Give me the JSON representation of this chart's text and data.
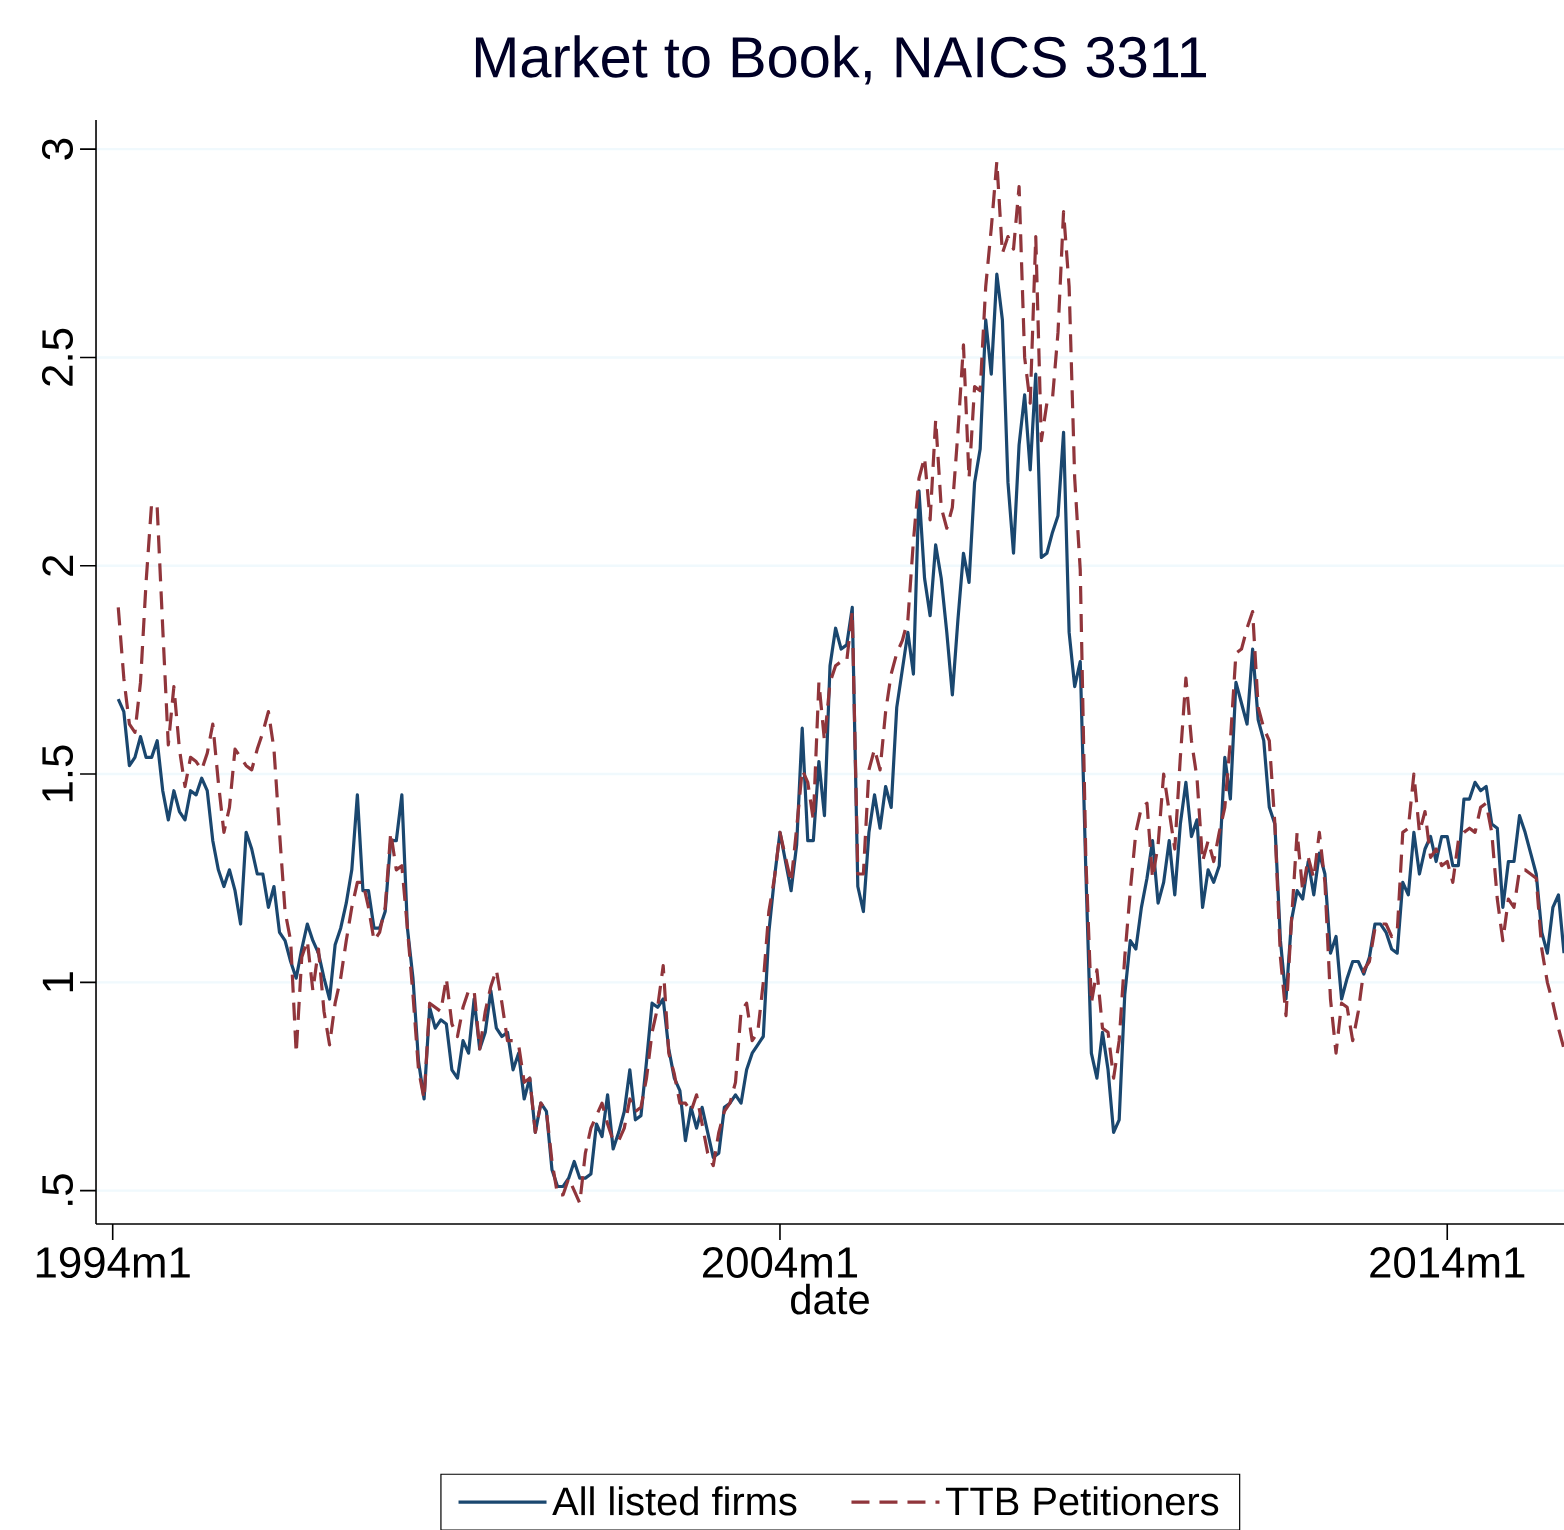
{
  "chart_data": {
    "type": "line",
    "title": "Market to Book, NAICS 3311",
    "xlabel": "date",
    "x": [
      "1994-02",
      "1994-03",
      "1994-04",
      "1994-05",
      "1994-06",
      "1994-07",
      "1994-08",
      "1994-09",
      "1994-10",
      "1994-11",
      "1994-12",
      "1995-01",
      "1995-02",
      "1995-03",
      "1995-04",
      "1995-05",
      "1995-06",
      "1995-07",
      "1995-08",
      "1995-09",
      "1995-10",
      "1995-11",
      "1995-12",
      "1996-01",
      "1996-02",
      "1996-03",
      "1996-04",
      "1996-05",
      "1996-06",
      "1996-07",
      "1996-08",
      "1996-09",
      "1996-10",
      "1996-11",
      "1996-12",
      "1997-01",
      "1997-02",
      "1997-03",
      "1997-04",
      "1997-05",
      "1997-06",
      "1997-07",
      "1997-08",
      "1997-09",
      "1997-10",
      "1997-11",
      "1997-12",
      "1998-01",
      "1998-02",
      "1998-03",
      "1998-04",
      "1998-05",
      "1998-06",
      "1998-07",
      "1998-08",
      "1998-09",
      "1998-10",
      "1998-11",
      "1998-12",
      "1999-01",
      "1999-02",
      "1999-03",
      "1999-04",
      "1999-05",
      "1999-06",
      "1999-07",
      "1999-08",
      "1999-09",
      "1999-10",
      "1999-11",
      "1999-12",
      "2000-01",
      "2000-02",
      "2000-03",
      "2000-04",
      "2000-05",
      "2000-06",
      "2000-07",
      "2000-08",
      "2000-09",
      "2000-10",
      "2000-11",
      "2000-12",
      "2001-01",
      "2001-02",
      "2001-03",
      "2001-04",
      "2001-05",
      "2001-06",
      "2001-07",
      "2001-08",
      "2001-09",
      "2001-10",
      "2001-11",
      "2001-12",
      "2002-01",
      "2002-02",
      "2002-03",
      "2002-04",
      "2002-05",
      "2002-06",
      "2002-07",
      "2002-08",
      "2002-09",
      "2002-10",
      "2002-11",
      "2002-12",
      "2003-01",
      "2003-02",
      "2003-03",
      "2003-04",
      "2003-05",
      "2003-06",
      "2003-07",
      "2003-08",
      "2003-09",
      "2003-10",
      "2003-11",
      "2003-12",
      "2004-01",
      "2004-02",
      "2004-03",
      "2004-04",
      "2004-05",
      "2004-06",
      "2004-07",
      "2004-08",
      "2004-09",
      "2004-10",
      "2004-11",
      "2004-12",
      "2005-01",
      "2005-02",
      "2005-03",
      "2005-04",
      "2005-05",
      "2005-06",
      "2005-07",
      "2005-08",
      "2005-09",
      "2005-10",
      "2005-11",
      "2005-12",
      "2006-01",
      "2006-02",
      "2006-03",
      "2006-04",
      "2006-05",
      "2006-06",
      "2006-07",
      "2006-08",
      "2006-09",
      "2006-10",
      "2006-11",
      "2006-12",
      "2007-01",
      "2007-02",
      "2007-03",
      "2007-04",
      "2007-05",
      "2007-06",
      "2007-07",
      "2007-08",
      "2007-09",
      "2007-10",
      "2007-11",
      "2007-12",
      "2008-01",
      "2008-02",
      "2008-03",
      "2008-04",
      "2008-05",
      "2008-06",
      "2008-07",
      "2008-08",
      "2008-09",
      "2008-10",
      "2008-11",
      "2008-12",
      "2009-01",
      "2009-02",
      "2009-03",
      "2009-04",
      "2009-05",
      "2009-06",
      "2009-07",
      "2009-08",
      "2009-09",
      "2009-10",
      "2009-11",
      "2009-12",
      "2010-01",
      "2010-02",
      "2010-03",
      "2010-04",
      "2010-05",
      "2010-06",
      "2010-07",
      "2010-08",
      "2010-09",
      "2010-10",
      "2010-11",
      "2010-12",
      "2011-01",
      "2011-02",
      "2011-03",
      "2011-04",
      "2011-05",
      "2011-06",
      "2011-07",
      "2011-08",
      "2011-09",
      "2011-10",
      "2011-11",
      "2011-12",
      "2012-01",
      "2012-02",
      "2012-03",
      "2012-04",
      "2012-05",
      "2012-06",
      "2012-07",
      "2012-08",
      "2012-09",
      "2012-10",
      "2012-11",
      "2012-12",
      "2013-01",
      "2013-02",
      "2013-03",
      "2013-04",
      "2013-05",
      "2013-06",
      "2013-07",
      "2013-08",
      "2013-09",
      "2013-10",
      "2013-11",
      "2013-12",
      "2014-01",
      "2014-02",
      "2014-03",
      "2014-04",
      "2014-05",
      "2014-06",
      "2014-07",
      "2014-08",
      "2014-09",
      "2014-10",
      "2014-11",
      "2014-12",
      "2015-01",
      "2015-02",
      "2015-03",
      "2015-04",
      "2015-05",
      "2015-06",
      "2015-07",
      "2015-08",
      "2015-09",
      "2015-10"
    ],
    "series": [
      {
        "name": "All listed firms",
        "color": "#1a476f",
        "line_style": "solid",
        "values": [
          1.68,
          1.65,
          1.52,
          1.54,
          1.59,
          1.54,
          1.54,
          1.58,
          1.46,
          1.39,
          1.46,
          1.41,
          1.39,
          1.46,
          1.45,
          1.49,
          1.46,
          1.34,
          1.27,
          1.23,
          1.27,
          1.22,
          1.14,
          1.36,
          1.32,
          1.26,
          1.26,
          1.18,
          1.23,
          1.12,
          1.1,
          1.05,
          1.01,
          1.08,
          1.14,
          1.1,
          1.07,
          1.01,
          0.96,
          1.09,
          1.13,
          1.19,
          1.27,
          1.45,
          1.22,
          1.22,
          1.13,
          1.13,
          1.17,
          1.34,
          1.34,
          1.45,
          1.13,
          1.01,
          0.81,
          0.72,
          0.94,
          0.89,
          0.91,
          0.9,
          0.79,
          0.77,
          0.86,
          0.83,
          0.96,
          0.84,
          0.88,
          0.98,
          0.89,
          0.87,
          0.88,
          0.79,
          0.83,
          0.72,
          0.77,
          0.64,
          0.71,
          0.69,
          0.55,
          0.51,
          0.51,
          0.53,
          0.57,
          0.53,
          0.53,
          0.54,
          0.66,
          0.63,
          0.73,
          0.6,
          0.64,
          0.69,
          0.79,
          0.67,
          0.68,
          0.81,
          0.95,
          0.94,
          0.96,
          0.84,
          0.77,
          0.74,
          0.62,
          0.7,
          0.65,
          0.7,
          0.64,
          0.58,
          0.59,
          0.7,
          0.71,
          0.73,
          0.71,
          0.79,
          0.83,
          0.85,
          0.87,
          1.12,
          1.25,
          1.36,
          1.29,
          1.22,
          1.33,
          1.61,
          1.34,
          1.34,
          1.53,
          1.4,
          1.76,
          1.85,
          1.8,
          1.81,
          1.9,
          1.23,
          1.17,
          1.36,
          1.45,
          1.37,
          1.47,
          1.42,
          1.66,
          1.75,
          1.84,
          1.74,
          2.18,
          1.97,
          1.88,
          2.05,
          1.97,
          1.84,
          1.69,
          1.87,
          2.03,
          1.96,
          2.2,
          2.28,
          2.59,
          2.46,
          2.7,
          2.59,
          2.2,
          2.03,
          2.29,
          2.41,
          2.23,
          2.46,
          2.02,
          2.03,
          2.08,
          2.12,
          2.32,
          1.84,
          1.71,
          1.77,
          1.27,
          0.83,
          0.77,
          0.88,
          0.79,
          0.64,
          0.67,
          0.97,
          1.1,
          1.08,
          1.18,
          1.25,
          1.34,
          1.19,
          1.24,
          1.34,
          1.21,
          1.38,
          1.48,
          1.35,
          1.39,
          1.18,
          1.27,
          1.24,
          1.28,
          1.54,
          1.44,
          1.72,
          1.67,
          1.62,
          1.8,
          1.63,
          1.58,
          1.42,
          1.38,
          1.1,
          0.96,
          1.15,
          1.22,
          1.2,
          1.29,
          1.21,
          1.31,
          1.26,
          1.07,
          1.11,
          0.96,
          1.01,
          1.05,
          1.05,
          1.02,
          1.06,
          1.14,
          1.14,
          1.12,
          1.08,
          1.07,
          1.24,
          1.21,
          1.36,
          1.26,
          1.32,
          1.35,
          1.29,
          1.35,
          1.35,
          1.28,
          1.28,
          1.44,
          1.44,
          1.48,
          1.46,
          1.47,
          1.38,
          1.37,
          1.18,
          1.29,
          1.29,
          1.4,
          1.36,
          1.31,
          1.26,
          1.12,
          1.07,
          1.18,
          1.21,
          1.07
        ]
      },
      {
        "name": "TTB Petitioners",
        "color": "#90353b",
        "line_style": "dashed",
        "values": [
          1.9,
          1.73,
          1.62,
          1.6,
          1.72,
          1.96,
          2.15,
          2.14,
          1.85,
          1.57,
          1.71,
          1.56,
          1.47,
          1.54,
          1.53,
          1.51,
          1.55,
          1.62,
          1.48,
          1.36,
          1.42,
          1.56,
          1.54,
          1.52,
          1.51,
          1.56,
          1.6,
          1.65,
          1.56,
          1.36,
          1.17,
          1.1,
          0.83,
          1.06,
          1.1,
          0.98,
          1.08,
          0.93,
          0.85,
          0.95,
          1.01,
          1.1,
          1.18,
          1.24,
          1.24,
          1.18,
          1.1,
          1.12,
          1.18,
          1.36,
          1.27,
          1.28,
          1.13,
          0.97,
          0.79,
          0.72,
          0.95,
          0.94,
          0.93,
          1.01,
          0.9,
          0.87,
          0.94,
          0.98,
          0.98,
          0.84,
          0.93,
          0.99,
          1.03,
          0.95,
          0.86,
          0.86,
          0.85,
          0.76,
          0.77,
          0.64,
          0.71,
          0.69,
          0.57,
          0.49,
          0.49,
          0.53,
          0.5,
          0.47,
          0.59,
          0.65,
          0.68,
          0.71,
          0.66,
          0.62,
          0.62,
          0.65,
          0.72,
          0.69,
          0.7,
          0.77,
          0.88,
          0.94,
          1.04,
          0.83,
          0.78,
          0.71,
          0.71,
          0.69,
          0.73,
          0.66,
          0.59,
          0.56,
          0.64,
          0.69,
          0.71,
          0.76,
          0.93,
          0.95,
          0.86,
          0.88,
          1.0,
          1.17,
          1.25,
          1.36,
          1.3,
          1.24,
          1.37,
          1.51,
          1.48,
          1.39,
          1.72,
          1.58,
          1.72,
          1.76,
          1.77,
          1.77,
          1.89,
          1.26,
          1.26,
          1.51,
          1.56,
          1.51,
          1.65,
          1.74,
          1.79,
          1.82,
          1.87,
          2.06,
          2.21,
          2.26,
          2.11,
          2.35,
          2.14,
          2.09,
          2.14,
          2.32,
          2.53,
          2.21,
          2.43,
          2.42,
          2.67,
          2.81,
          2.97,
          2.75,
          2.79,
          2.76,
          2.91,
          2.5,
          2.39,
          2.79,
          2.3,
          2.39,
          2.4,
          2.56,
          2.85,
          2.67,
          2.21,
          1.99,
          1.3,
          0.95,
          1.03,
          0.89,
          0.88,
          0.77,
          0.86,
          1.06,
          1.22,
          1.36,
          1.42,
          1.43,
          1.25,
          1.33,
          1.5,
          1.41,
          1.32,
          1.54,
          1.73,
          1.58,
          1.49,
          1.29,
          1.34,
          1.29,
          1.36,
          1.42,
          1.58,
          1.79,
          1.8,
          1.85,
          1.89,
          1.66,
          1.61,
          1.58,
          1.38,
          1.06,
          0.92,
          1.15,
          1.36,
          1.22,
          1.3,
          1.25,
          1.36,
          1.24,
          0.96,
          0.83,
          0.95,
          0.94,
          0.86,
          0.93,
          1.03,
          1.05,
          1.13,
          1.14,
          1.14,
          1.11,
          1.12,
          1.36,
          1.37,
          1.5,
          1.36,
          1.41,
          1.3,
          1.32,
          1.28,
          1.29,
          1.24,
          1.34,
          1.36,
          1.37,
          1.36,
          1.42,
          1.43,
          1.36,
          1.2,
          1.1,
          1.2,
          1.18,
          1.27,
          1.27,
          1.26,
          1.25,
          1.08,
          1.0,
          0.95,
          0.89,
          0.84
        ]
      }
    ],
    "xlim": [
      "1993-10",
      "2015-10"
    ],
    "xticks": [
      {
        "value": "1994-01",
        "label": "1994m1"
      },
      {
        "value": "2004-01",
        "label": "2004m1"
      },
      {
        "value": "2014-01",
        "label": "2014m1"
      }
    ],
    "ylim": [
      0.42,
      3.07
    ],
    "yticks": [
      {
        "value": 0.5,
        "label": ".5"
      },
      1,
      1.5,
      2,
      2.5,
      3
    ],
    "grid": "y",
    "legend": "bottom"
  }
}
